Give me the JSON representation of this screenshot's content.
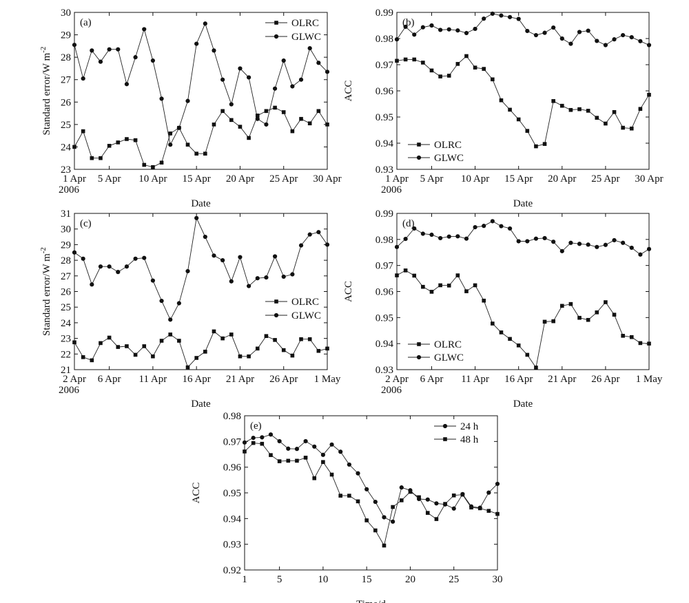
{
  "chart_data": [
    {
      "panel_label": "(a)",
      "type": "line",
      "ylabel": "Standard error/W m",
      "ylabel_sup": "-2",
      "xlabel": "Date",
      "ylim": [
        23,
        30
      ],
      "yticks": [
        23,
        24,
        25,
        26,
        27,
        28,
        29,
        30
      ],
      "xlim": [
        1,
        30
      ],
      "xticks": [
        {
          "x": 1,
          "label": "1 Apr",
          "sub": "2006"
        },
        {
          "x": 5,
          "label": "5 Apr"
        },
        {
          "x": 10,
          "label": "10 Apr"
        },
        {
          "x": 15,
          "label": "15 Apr"
        },
        {
          "x": 20,
          "label": "20 Apr"
        },
        {
          "x": 25,
          "label": "25 Apr"
        },
        {
          "x": 30,
          "label": "30 Apr"
        }
      ],
      "legend_position": "top-right",
      "x": [
        1,
        2,
        3,
        4,
        5,
        6,
        7,
        8,
        9,
        10,
        11,
        12,
        13,
        14,
        15,
        16,
        17,
        18,
        19,
        20,
        21,
        22,
        23,
        24,
        25,
        26,
        27,
        28,
        29,
        30
      ],
      "series": [
        {
          "name": "OLRC",
          "marker": "square",
          "values": [
            24.0,
            24.7,
            23.5,
            23.5,
            24.05,
            24.2,
            24.35,
            24.3,
            23.2,
            23.1,
            23.3,
            24.6,
            24.85,
            24.1,
            23.7,
            23.7,
            25.0,
            25.6,
            25.2,
            24.9,
            24.4,
            25.4,
            25.6,
            25.75,
            25.55,
            24.7,
            25.25,
            25.05,
            25.6,
            25.0
          ]
        },
        {
          "name": "GLWC",
          "marker": "circle",
          "values": [
            28.55,
            27.05,
            28.3,
            27.8,
            28.35,
            28.35,
            26.8,
            28.0,
            29.25,
            27.85,
            26.15,
            24.1,
            24.85,
            26.05,
            28.6,
            29.5,
            28.3,
            27.0,
            25.9,
            27.5,
            27.1,
            25.25,
            25.0,
            26.6,
            27.85,
            26.7,
            27.0,
            28.4,
            27.75,
            27.35
          ]
        }
      ]
    },
    {
      "panel_label": "(b)",
      "type": "line",
      "ylabel": "ACC",
      "xlabel": "Date",
      "ylim": [
        0.93,
        0.99
      ],
      "yticks": [
        0.93,
        0.94,
        0.95,
        0.96,
        0.97,
        0.98,
        0.99
      ],
      "xlim": [
        1,
        30
      ],
      "xticks": [
        {
          "x": 1,
          "label": "1 Apr",
          "sub": "2006"
        },
        {
          "x": 5,
          "label": "5 Apr"
        },
        {
          "x": 10,
          "label": "10 Apr"
        },
        {
          "x": 15,
          "label": "15 Apr"
        },
        {
          "x": 20,
          "label": "20 Apr"
        },
        {
          "x": 25,
          "label": "25 Apr"
        },
        {
          "x": 30,
          "label": "30 Apr"
        }
      ],
      "legend_position": "bottom-left",
      "x": [
        1,
        2,
        3,
        4,
        5,
        6,
        7,
        8,
        9,
        10,
        11,
        12,
        13,
        14,
        15,
        16,
        17,
        18,
        19,
        20,
        21,
        22,
        23,
        24,
        25,
        26,
        27,
        28,
        29,
        30
      ],
      "series": [
        {
          "name": "OLRC",
          "marker": "square",
          "values": [
            0.9715,
            0.972,
            0.972,
            0.9708,
            0.9678,
            0.9655,
            0.9658,
            0.9703,
            0.9733,
            0.9689,
            0.9684,
            0.9644,
            0.9564,
            0.9528,
            0.9491,
            0.9447,
            0.9388,
            0.9397,
            0.9561,
            0.9543,
            0.9527,
            0.953,
            0.9524,
            0.9497,
            0.9475,
            0.9519,
            0.9459,
            0.9456,
            0.9531,
            0.9585
          ]
        },
        {
          "name": "GLWC",
          "marker": "circle",
          "values": [
            0.9797,
            0.9845,
            0.9815,
            0.9843,
            0.985,
            0.9833,
            0.9835,
            0.9831,
            0.9821,
            0.9837,
            0.9876,
            0.9895,
            0.9888,
            0.9882,
            0.9875,
            0.9829,
            0.9813,
            0.9822,
            0.9842,
            0.98,
            0.978,
            0.9825,
            0.983,
            0.9791,
            0.9775,
            0.9797,
            0.9813,
            0.9805,
            0.979,
            0.9775
          ]
        }
      ]
    },
    {
      "panel_label": "(c)",
      "type": "line",
      "ylabel": "Standard error/W m",
      "ylabel_sup": "-2",
      "xlabel": "Date",
      "ylim": [
        21,
        31
      ],
      "yticks": [
        21,
        22,
        23,
        24,
        25,
        26,
        27,
        28,
        29,
        30,
        31
      ],
      "xlim": [
        2,
        31
      ],
      "xticks": [
        {
          "x": 2,
          "label": "2 Apr",
          "sub": "2006"
        },
        {
          "x": 6,
          "label": "6 Apr"
        },
        {
          "x": 11,
          "label": "11 Apr"
        },
        {
          "x": 16,
          "label": "16 Apr"
        },
        {
          "x": 21,
          "label": "21 Apr"
        },
        {
          "x": 26,
          "label": "26 Apr"
        },
        {
          "x": 31,
          "label": "1 May"
        }
      ],
      "legend_position": "center-right",
      "x": [
        2,
        3,
        4,
        5,
        6,
        7,
        8,
        9,
        10,
        11,
        12,
        13,
        14,
        15,
        16,
        17,
        18,
        19,
        20,
        21,
        22,
        23,
        24,
        25,
        26,
        27,
        28,
        29,
        30,
        31
      ],
      "series": [
        {
          "name": "OLRC",
          "marker": "square",
          "values": [
            22.75,
            21.8,
            21.6,
            22.7,
            23.05,
            22.45,
            22.5,
            21.95,
            22.5,
            21.85,
            22.85,
            23.25,
            22.85,
            21.15,
            21.75,
            22.15,
            23.45,
            23.0,
            23.25,
            21.85,
            21.85,
            22.35,
            23.15,
            22.9,
            22.25,
            21.9,
            22.95,
            22.95,
            22.2,
            22.35
          ]
        },
        {
          "name": "GLWC",
          "marker": "circle",
          "values": [
            28.5,
            28.1,
            26.45,
            27.6,
            27.6,
            27.25,
            27.6,
            28.1,
            28.15,
            26.7,
            25.4,
            24.2,
            25.25,
            27.3,
            30.7,
            29.5,
            28.3,
            28.0,
            26.65,
            28.2,
            26.35,
            26.85,
            26.9,
            28.25,
            26.95,
            27.1,
            28.95,
            29.65,
            29.8,
            29.0
          ]
        }
      ]
    },
    {
      "panel_label": "(d)",
      "type": "line",
      "ylabel": "ACC",
      "xlabel": "Date",
      "ylim": [
        0.93,
        0.99
      ],
      "yticks": [
        0.93,
        0.94,
        0.95,
        0.96,
        0.97,
        0.98,
        0.99
      ],
      "xlim": [
        2,
        31
      ],
      "xticks": [
        {
          "x": 2,
          "label": "2 Apr",
          "sub": "2006"
        },
        {
          "x": 6,
          "label": "6 Apr"
        },
        {
          "x": 11,
          "label": "11 Apr"
        },
        {
          "x": 16,
          "label": "16 Apr"
        },
        {
          "x": 21,
          "label": "21 Apr"
        },
        {
          "x": 26,
          "label": "26 Apr"
        },
        {
          "x": 31,
          "label": "1 May"
        }
      ],
      "legend_position": "bottom-left",
      "x": [
        2,
        3,
        4,
        5,
        6,
        7,
        8,
        9,
        10,
        11,
        12,
        13,
        14,
        15,
        16,
        17,
        18,
        19,
        20,
        21,
        22,
        23,
        24,
        25,
        26,
        27,
        28,
        29,
        30,
        31
      ],
      "series": [
        {
          "name": "OLRC",
          "marker": "square",
          "values": [
            0.9662,
            0.9681,
            0.9661,
            0.9618,
            0.9599,
            0.9624,
            0.9623,
            0.9662,
            0.9601,
            0.9624,
            0.9565,
            0.9477,
            0.9443,
            0.9418,
            0.9393,
            0.9357,
            0.9308,
            0.9484,
            0.9486,
            0.9545,
            0.9552,
            0.9499,
            0.9491,
            0.952,
            0.9559,
            0.9511,
            0.943,
            0.9425,
            0.9402,
            0.94
          ]
        },
        {
          "name": "GLWC",
          "marker": "circle",
          "values": [
            0.9771,
            0.9802,
            0.9842,
            0.9822,
            0.9818,
            0.9805,
            0.9811,
            0.9812,
            0.9803,
            0.9847,
            0.9852,
            0.987,
            0.9851,
            0.9842,
            0.9793,
            0.9793,
            0.9803,
            0.9805,
            0.9791,
            0.9755,
            0.9787,
            0.9783,
            0.978,
            0.9771,
            0.9779,
            0.9797,
            0.9787,
            0.9768,
            0.9742,
            0.9763
          ]
        }
      ]
    },
    {
      "panel_label": "(e)",
      "type": "line",
      "ylabel": "ACC",
      "xlabel": "Time/d",
      "ylim": [
        0.92,
        0.98
      ],
      "yticks": [
        0.92,
        0.93,
        0.94,
        0.95,
        0.96,
        0.97,
        0.98
      ],
      "xlim": [
        1,
        30
      ],
      "xticks": [
        {
          "x": 1,
          "label": "1"
        },
        {
          "x": 5,
          "label": "5"
        },
        {
          "x": 10,
          "label": "10"
        },
        {
          "x": 15,
          "label": "15"
        },
        {
          "x": 20,
          "label": "20"
        },
        {
          "x": 25,
          "label": "25"
        },
        {
          "x": 30,
          "label": "30"
        }
      ],
      "legend_position": "top-right",
      "x": [
        1,
        2,
        3,
        4,
        5,
        6,
        7,
        8,
        9,
        10,
        11,
        12,
        13,
        14,
        15,
        16,
        17,
        18,
        19,
        20,
        21,
        22,
        23,
        24,
        25,
        26,
        27,
        28,
        29,
        30
      ],
      "series": [
        {
          "name": "24 h",
          "marker": "circle",
          "values": [
            0.9696,
            0.9714,
            0.9716,
            0.9727,
            0.9701,
            0.9672,
            0.9671,
            0.9701,
            0.968,
            0.9648,
            0.9688,
            0.966,
            0.961,
            0.9576,
            0.9514,
            0.9465,
            0.9405,
            0.9388,
            0.9521,
            0.951,
            0.9476,
            0.9474,
            0.9459,
            0.9455,
            0.9439,
            0.9495,
            0.9447,
            0.9442,
            0.9501,
            0.9535
          ]
        },
        {
          "name": "48 h",
          "marker": "square",
          "values": [
            0.9661,
            0.9694,
            0.9691,
            0.9647,
            0.9623,
            0.9625,
            0.9625,
            0.9637,
            0.9557,
            0.962,
            0.9571,
            0.9489,
            0.9489,
            0.9467,
            0.9393,
            0.9354,
            0.9295,
            0.9445,
            0.9471,
            0.9504,
            0.9483,
            0.9422,
            0.9398,
            0.9457,
            0.949,
            0.9493,
            0.9443,
            0.944,
            0.943,
            0.9418
          ]
        }
      ]
    }
  ]
}
